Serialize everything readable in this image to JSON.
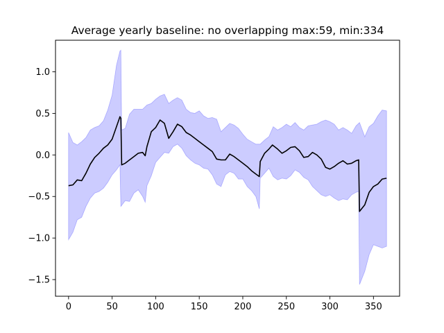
{
  "chart_data": {
    "type": "line",
    "title": "Average yearly baseline: no overlapping max:59, min:334",
    "xlabel": "",
    "ylabel": "",
    "xlim": [
      -15,
      380
    ],
    "ylim": [
      -1.7,
      1.38
    ],
    "x_ticks": [
      0,
      50,
      100,
      150,
      200,
      250,
      300,
      350
    ],
    "y_ticks": [
      -1.5,
      -1.0,
      -0.5,
      0.0,
      0.5,
      1.0
    ],
    "x_tick_labels": [
      "0",
      "50",
      "100",
      "150",
      "200",
      "250",
      "300",
      "350"
    ],
    "y_tick_labels": [
      "−1.5",
      "−1.0",
      "−0.5",
      "0.0",
      "0.5",
      "1.0"
    ],
    "grid": false,
    "series": [
      {
        "role": "mean",
        "color": "#000000",
        "points": [
          [
            0,
            -0.37
          ],
          [
            5,
            -0.36
          ],
          [
            10,
            -0.3
          ],
          [
            15,
            -0.31
          ],
          [
            20,
            -0.22
          ],
          [
            25,
            -0.11
          ],
          [
            30,
            -0.03
          ],
          [
            35,
            0.02
          ],
          [
            40,
            0.08
          ],
          [
            45,
            0.12
          ],
          [
            50,
            0.19
          ],
          [
            55,
            0.34
          ],
          [
            59,
            0.46
          ],
          [
            60,
            0.44
          ],
          [
            61,
            -0.12
          ],
          [
            65,
            -0.1
          ],
          [
            70,
            -0.06
          ],
          [
            75,
            -0.02
          ],
          [
            80,
            0.02
          ],
          [
            85,
            0.03
          ],
          [
            88,
            -0.01
          ],
          [
            90,
            0.1
          ],
          [
            95,
            0.28
          ],
          [
            100,
            0.33
          ],
          [
            105,
            0.42
          ],
          [
            110,
            0.38
          ],
          [
            115,
            0.2
          ],
          [
            120,
            0.28
          ],
          [
            125,
            0.37
          ],
          [
            130,
            0.34
          ],
          [
            135,
            0.27
          ],
          [
            140,
            0.24
          ],
          [
            145,
            0.2
          ],
          [
            150,
            0.16
          ],
          [
            155,
            0.12
          ],
          [
            160,
            0.08
          ],
          [
            165,
            0.04
          ],
          [
            170,
            -0.05
          ],
          [
            175,
            -0.06
          ],
          [
            180,
            -0.06
          ],
          [
            185,
            0.01
          ],
          [
            190,
            -0.02
          ],
          [
            195,
            -0.06
          ],
          [
            200,
            -0.1
          ],
          [
            205,
            -0.14
          ],
          [
            210,
            -0.19
          ],
          [
            215,
            -0.23
          ],
          [
            219,
            -0.26
          ],
          [
            220,
            -0.08
          ],
          [
            225,
            0.02
          ],
          [
            230,
            0.07
          ],
          [
            234,
            0.12
          ],
          [
            240,
            0.07
          ],
          [
            245,
            0.02
          ],
          [
            250,
            0.05
          ],
          [
            255,
            0.09
          ],
          [
            260,
            0.1
          ],
          [
            265,
            0.05
          ],
          [
            270,
            -0.03
          ],
          [
            275,
            -0.02
          ],
          [
            280,
            0.03
          ],
          [
            285,
            0.0
          ],
          [
            290,
            -0.05
          ],
          [
            295,
            -0.15
          ],
          [
            300,
            -0.17
          ],
          [
            305,
            -0.14
          ],
          [
            310,
            -0.1
          ],
          [
            315,
            -0.07
          ],
          [
            320,
            -0.11
          ],
          [
            325,
            -0.1
          ],
          [
            330,
            -0.07
          ],
          [
            333,
            -0.06
          ],
          [
            334,
            -0.68
          ],
          [
            340,
            -0.6
          ],
          [
            345,
            -0.45
          ],
          [
            350,
            -0.38
          ],
          [
            355,
            -0.35
          ],
          [
            360,
            -0.29
          ],
          [
            365,
            -0.28
          ]
        ]
      },
      {
        "role": "band",
        "color": "#0000ff",
        "opacity": 0.2,
        "upper": [
          [
            0,
            0.27
          ],
          [
            5,
            0.15
          ],
          [
            10,
            0.12
          ],
          [
            15,
            0.16
          ],
          [
            20,
            0.21
          ],
          [
            25,
            0.3
          ],
          [
            30,
            0.33
          ],
          [
            35,
            0.35
          ],
          [
            40,
            0.41
          ],
          [
            45,
            0.54
          ],
          [
            50,
            0.72
          ],
          [
            55,
            1.08
          ],
          [
            59,
            1.25
          ],
          [
            60,
            1.26
          ],
          [
            61,
            0.3
          ],
          [
            65,
            0.32
          ],
          [
            70,
            0.49
          ],
          [
            75,
            0.55
          ],
          [
            80,
            0.55
          ],
          [
            85,
            0.55
          ],
          [
            90,
            0.6
          ],
          [
            95,
            0.62
          ],
          [
            100,
            0.67
          ],
          [
            105,
            0.71
          ],
          [
            110,
            0.73
          ],
          [
            115,
            0.62
          ],
          [
            120,
            0.66
          ],
          [
            125,
            0.69
          ],
          [
            130,
            0.66
          ],
          [
            135,
            0.55
          ],
          [
            140,
            0.51
          ],
          [
            145,
            0.5
          ],
          [
            150,
            0.53
          ],
          [
            155,
            0.47
          ],
          [
            160,
            0.44
          ],
          [
            165,
            0.45
          ],
          [
            170,
            0.43
          ],
          [
            175,
            0.28
          ],
          [
            180,
            0.33
          ],
          [
            185,
            0.38
          ],
          [
            190,
            0.36
          ],
          [
            195,
            0.32
          ],
          [
            200,
            0.25
          ],
          [
            205,
            0.19
          ],
          [
            210,
            0.16
          ],
          [
            215,
            0.13
          ],
          [
            220,
            0.13
          ],
          [
            225,
            0.18
          ],
          [
            230,
            0.22
          ],
          [
            235,
            0.34
          ],
          [
            240,
            0.3
          ],
          [
            245,
            0.33
          ],
          [
            250,
            0.37
          ],
          [
            255,
            0.34
          ],
          [
            260,
            0.39
          ],
          [
            265,
            0.33
          ],
          [
            270,
            0.3
          ],
          [
            275,
            0.35
          ],
          [
            280,
            0.36
          ],
          [
            285,
            0.37
          ],
          [
            290,
            0.4
          ],
          [
            295,
            0.42
          ],
          [
            300,
            0.4
          ],
          [
            305,
            0.37
          ],
          [
            310,
            0.3
          ],
          [
            315,
            0.33
          ],
          [
            320,
            0.3
          ],
          [
            325,
            0.26
          ],
          [
            330,
            0.35
          ],
          [
            333,
            0.38
          ],
          [
            334,
            0.39
          ],
          [
            340,
            0.22
          ],
          [
            345,
            0.34
          ],
          [
            350,
            0.38
          ],
          [
            355,
            0.47
          ],
          [
            360,
            0.54
          ],
          [
            365,
            0.53
          ]
        ],
        "lower": [
          [
            0,
            -1.02
          ],
          [
            5,
            -0.93
          ],
          [
            10,
            -0.78
          ],
          [
            15,
            -0.75
          ],
          [
            20,
            -0.62
          ],
          [
            25,
            -0.52
          ],
          [
            30,
            -0.46
          ],
          [
            35,
            -0.44
          ],
          [
            40,
            -0.4
          ],
          [
            45,
            -0.33
          ],
          [
            50,
            -0.24
          ],
          [
            55,
            -0.18
          ],
          [
            59,
            -0.12
          ],
          [
            60,
            -0.62
          ],
          [
            65,
            -0.55
          ],
          [
            70,
            -0.56
          ],
          [
            75,
            -0.46
          ],
          [
            80,
            -0.42
          ],
          [
            85,
            -0.5
          ],
          [
            88,
            -0.57
          ],
          [
            90,
            -0.37
          ],
          [
            95,
            -0.25
          ],
          [
            100,
            -0.09
          ],
          [
            105,
            -0.03
          ],
          [
            110,
            0.03
          ],
          [
            115,
            0.02
          ],
          [
            120,
            0.1
          ],
          [
            125,
            0.13
          ],
          [
            130,
            0.08
          ],
          [
            135,
            -0.01
          ],
          [
            140,
            -0.06
          ],
          [
            145,
            -0.1
          ],
          [
            150,
            -0.12
          ],
          [
            155,
            -0.16
          ],
          [
            160,
            -0.17
          ],
          [
            165,
            -0.24
          ],
          [
            170,
            -0.35
          ],
          [
            175,
            -0.38
          ],
          [
            180,
            -0.24
          ],
          [
            185,
            -0.2
          ],
          [
            190,
            -0.22
          ],
          [
            195,
            -0.29
          ],
          [
            200,
            -0.29
          ],
          [
            205,
            -0.38
          ],
          [
            210,
            -0.43
          ],
          [
            215,
            -0.5
          ],
          [
            219,
            -0.65
          ],
          [
            220,
            -0.28
          ],
          [
            225,
            -0.22
          ],
          [
            230,
            -0.16
          ],
          [
            235,
            -0.26
          ],
          [
            240,
            -0.3
          ],
          [
            245,
            -0.28
          ],
          [
            250,
            -0.29
          ],
          [
            255,
            -0.25
          ],
          [
            260,
            -0.18
          ],
          [
            265,
            -0.21
          ],
          [
            270,
            -0.27
          ],
          [
            275,
            -0.3
          ],
          [
            280,
            -0.38
          ],
          [
            285,
            -0.43
          ],
          [
            290,
            -0.48
          ],
          [
            295,
            -0.5
          ],
          [
            300,
            -0.48
          ],
          [
            305,
            -0.52
          ],
          [
            310,
            -0.55
          ],
          [
            315,
            -0.53
          ],
          [
            320,
            -0.54
          ],
          [
            325,
            -0.48
          ],
          [
            330,
            -0.45
          ],
          [
            333,
            -0.44
          ],
          [
            334,
            -1.56
          ],
          [
            340,
            -1.4
          ],
          [
            345,
            -1.2
          ],
          [
            350,
            -1.08
          ],
          [
            355,
            -1.1
          ],
          [
            360,
            -1.12
          ],
          [
            365,
            -1.1
          ]
        ]
      }
    ]
  }
}
